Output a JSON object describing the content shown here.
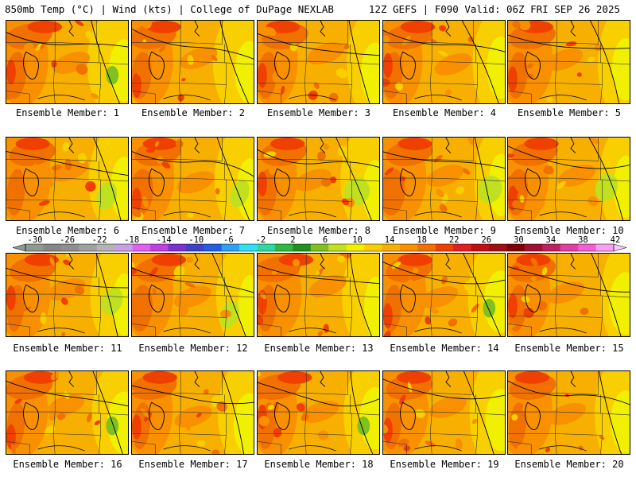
{
  "header": {
    "left": "850mb Temp (°C) | Wind (kts) | College of DuPage NEXLAB",
    "right": "12Z GEFS | F090 Valid: 06Z FRI SEP 26 2025"
  },
  "panels": [
    {
      "label": "Ensemble Member: 1"
    },
    {
      "label": "Ensemble Member: 2"
    },
    {
      "label": "Ensemble Member: 3"
    },
    {
      "label": "Ensemble Member: 4"
    },
    {
      "label": "Ensemble Member: 5"
    },
    {
      "label": "Ensemble Member: 6"
    },
    {
      "label": "Ensemble Member: 7"
    },
    {
      "label": "Ensemble Member: 8"
    },
    {
      "label": "Ensemble Member: 9"
    },
    {
      "label": "Ensemble Member: 10"
    },
    {
      "label": "Ensemble Member: 11"
    },
    {
      "label": "Ensemble Member: 12"
    },
    {
      "label": "Ensemble Member: 13"
    },
    {
      "label": "Ensemble Member: 14"
    },
    {
      "label": "Ensemble Member: 15"
    },
    {
      "label": "Ensemble Member: 16"
    },
    {
      "label": "Ensemble Member: 17"
    },
    {
      "label": "Ensemble Member: 18"
    },
    {
      "label": "Ensemble Member: 19"
    },
    {
      "label": "Ensemble Member: 20"
    }
  ],
  "colorbar": {
    "ticks": [
      "-30",
      "-26",
      "-22",
      "-18",
      "-14",
      "-10",
      "-6",
      "-2",
      "2",
      "6",
      "10",
      "14",
      "18",
      "22",
      "26",
      "30",
      "34",
      "38",
      "42"
    ],
    "colors": [
      "#8f9a8f",
      "#878787",
      "#8f8f8f",
      "#a0a0a0",
      "#b4b4b4",
      "#c8a0e6",
      "#e060f0",
      "#c040e0",
      "#8030d0",
      "#4040c8",
      "#2060e0",
      "#30a0f0",
      "#30e0f0",
      "#30d8a0",
      "#30b840",
      "#209020",
      "#80c020",
      "#c0e020",
      "#f0f000",
      "#f8d000",
      "#f8b000",
      "#f89000",
      "#f07000",
      "#f04000",
      "#e02020",
      "#c01010",
      "#a01010",
      "#800000",
      "#a01030",
      "#c02060",
      "#e040a0",
      "#f060d0",
      "#f8a0f0"
    ]
  }
}
